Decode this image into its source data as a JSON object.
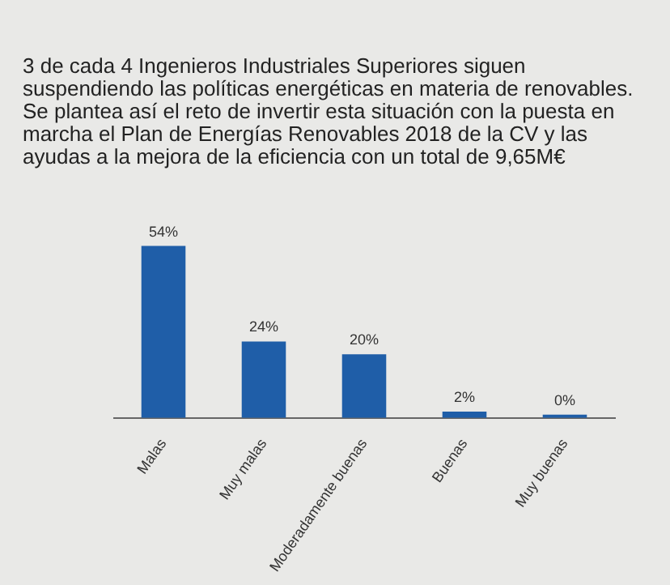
{
  "chart_data": {
    "type": "bar",
    "title": "3 de cada 4 Ingenieros Industriales Superiores siguen suspendiendo las políticas energéticas en materia de renovables. Se plantea así el reto de invertir esta situación con la puesta en marcha el Plan de Energías Renovables 2018 de la CV y las ayudas a la mejora de la eficiencia con un total de 9,65M€",
    "categories": [
      "Malas",
      "Muy malas",
      "Moderadamente buenas",
      "Buenas",
      "Muy buenas"
    ],
    "values": [
      54,
      24,
      20,
      2,
      0
    ],
    "value_labels": [
      "54%",
      "24%",
      "20%",
      "2%",
      "0%"
    ],
    "color": "#1f5ea8",
    "grid": false,
    "legend": false
  }
}
